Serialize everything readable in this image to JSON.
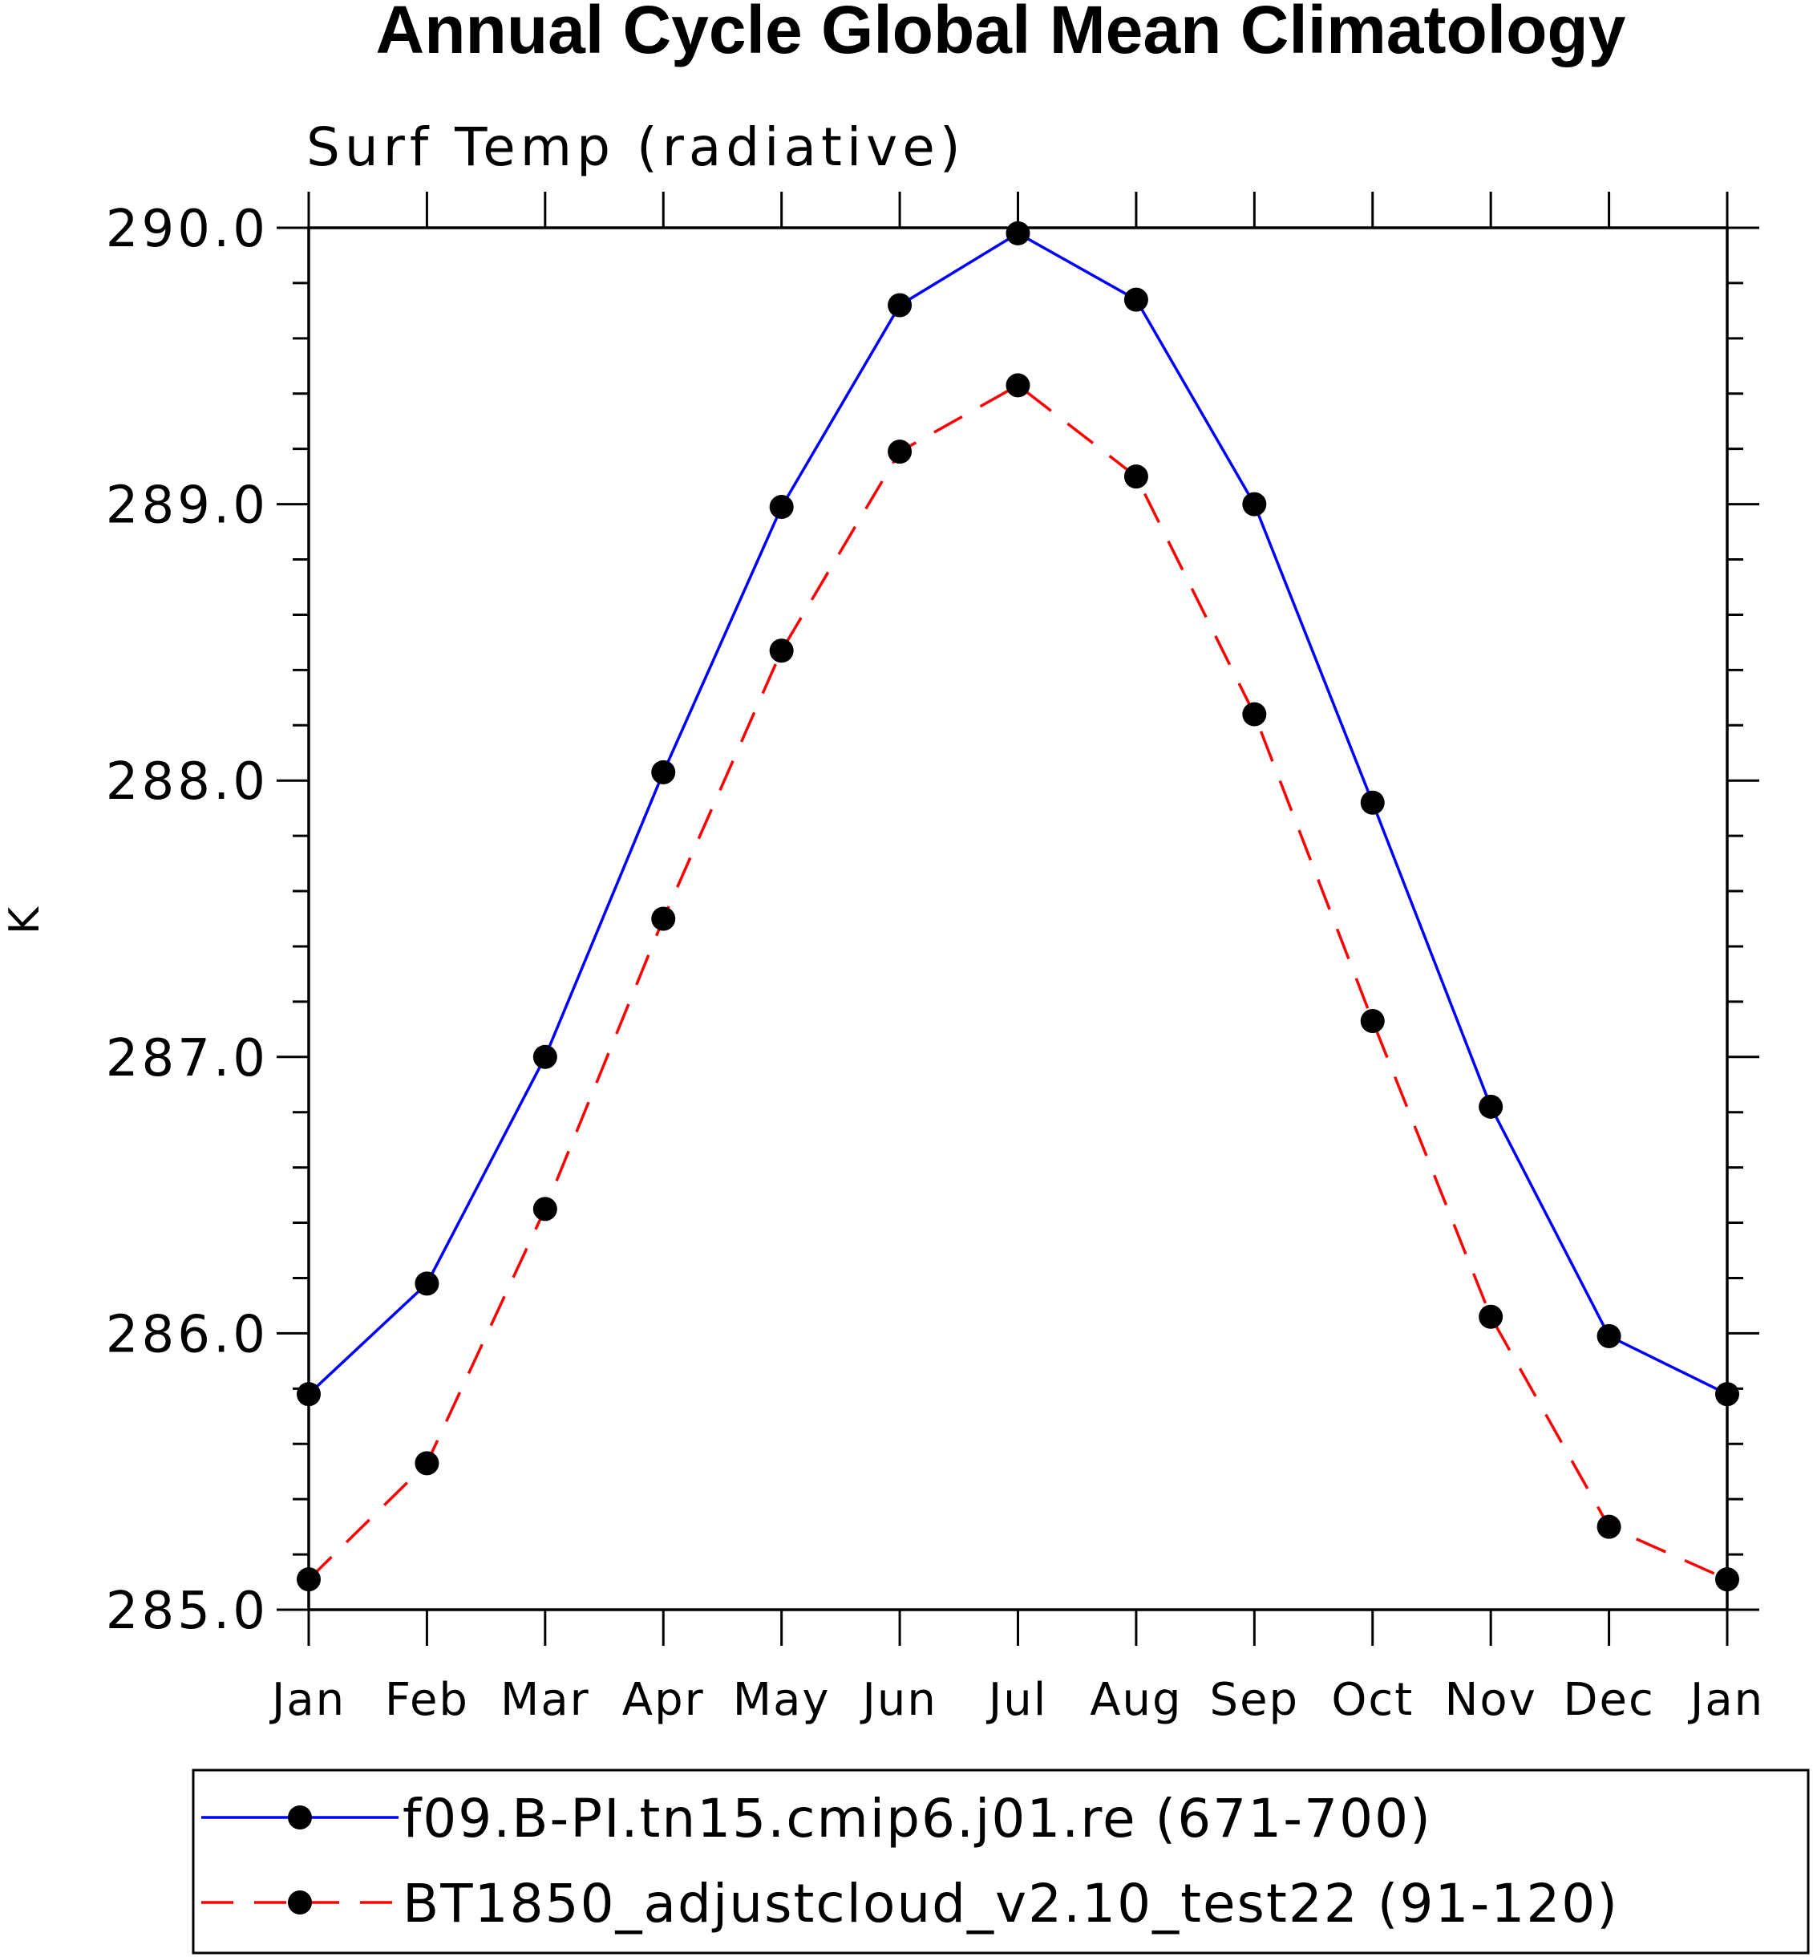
{
  "chart_data": {
    "type": "line",
    "title": "Annual Cycle Global Mean Climatology",
    "subtitle": "Surf Temp (radiative)",
    "xlabel": "",
    "ylabel": "K",
    "ylim": [
      285.0,
      290.0
    ],
    "y_major_ticks": [
      285.0,
      286.0,
      287.0,
      288.0,
      289.0,
      290.0
    ],
    "y_tick_labels": [
      "285.0",
      "286.0",
      "287.0",
      "288.0",
      "289.0",
      "290.0"
    ],
    "y_minor_step": 0.2,
    "categories": [
      "Jan",
      "Feb",
      "Mar",
      "Apr",
      "May",
      "Jun",
      "Jul",
      "Aug",
      "Sep",
      "Oct",
      "Nov",
      "Dec",
      "Jan"
    ],
    "grid": false,
    "legend_position": "bottom",
    "series": [
      {
        "name": "f09.B-PI.tn15.cmip6.j01.re (671-700)",
        "color": "#0000ff",
        "dash": "solid",
        "marker": "filled-circle",
        "values": [
          285.78,
          286.18,
          287.0,
          288.03,
          288.99,
          289.72,
          289.98,
          289.74,
          289.0,
          287.92,
          286.82,
          285.99,
          285.78
        ]
      },
      {
        "name": "BT1850_adjustcloud_v2.10_test22 (91-120)",
        "color": "#ff0000",
        "dash": "dashed",
        "marker": "filled-circle",
        "values": [
          285.11,
          285.53,
          286.45,
          287.5,
          288.47,
          289.19,
          289.43,
          289.1,
          288.24,
          287.13,
          286.06,
          285.3,
          285.11
        ]
      }
    ]
  }
}
